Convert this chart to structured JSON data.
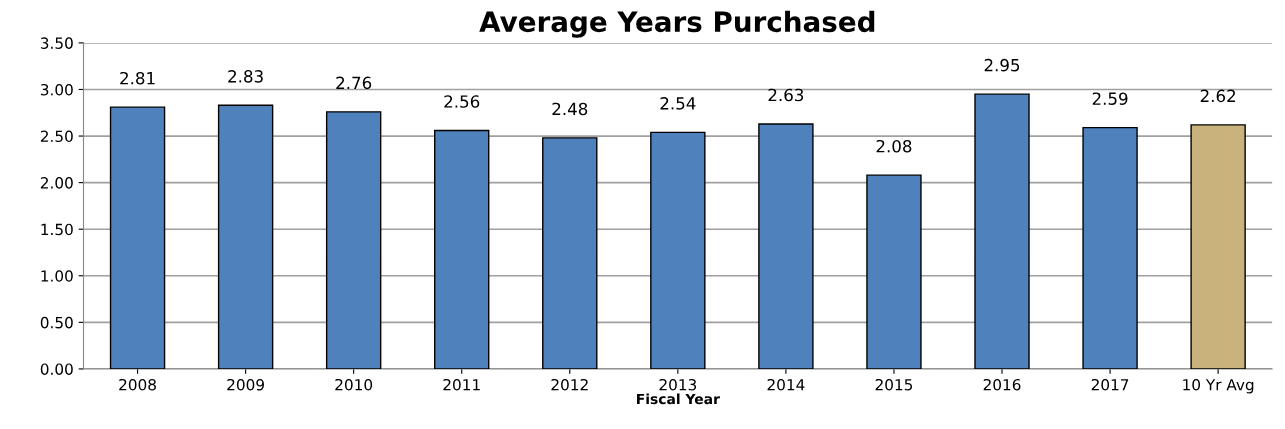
{
  "chart_data": {
    "type": "bar",
    "title": "Average Years Purchased",
    "xlabel": "Fiscal Year",
    "categories": [
      "2008",
      "2009",
      "2010",
      "2011",
      "2012",
      "2013",
      "2014",
      "2015",
      "2016",
      "2017",
      "10 Yr Avg"
    ],
    "values": [
      2.81,
      2.83,
      2.76,
      2.56,
      2.48,
      2.54,
      2.63,
      2.08,
      2.95,
      2.59,
      2.62
    ],
    "colors": [
      "#4f81bd",
      "#4f81bd",
      "#4f81bd",
      "#4f81bd",
      "#4f81bd",
      "#4f81bd",
      "#4f81bd",
      "#4f81bd",
      "#4f81bd",
      "#4f81bd",
      "#c9b27c"
    ],
    "value_labels": [
      "2.81",
      "2.83",
      "2.76",
      "2.56",
      "2.48",
      "2.54",
      "2.63",
      "2.08",
      "2.95",
      "2.59",
      "2.62"
    ],
    "ylim": [
      0,
      3.5
    ],
    "yticks": [
      {
        "value": 0,
        "label": "0.00"
      },
      {
        "value": 0.5,
        "label": "0.50"
      },
      {
        "value": 1,
        "label": "1.00"
      },
      {
        "value": 1.5,
        "label": "1.50"
      },
      {
        "value": 2,
        "label": "2.00"
      },
      {
        "value": 2.5,
        "label": "2.50"
      },
      {
        "value": 3,
        "label": "3.00"
      },
      {
        "value": 3.5,
        "label": "3.50"
      }
    ],
    "grid": "y",
    "legend": false
  }
}
